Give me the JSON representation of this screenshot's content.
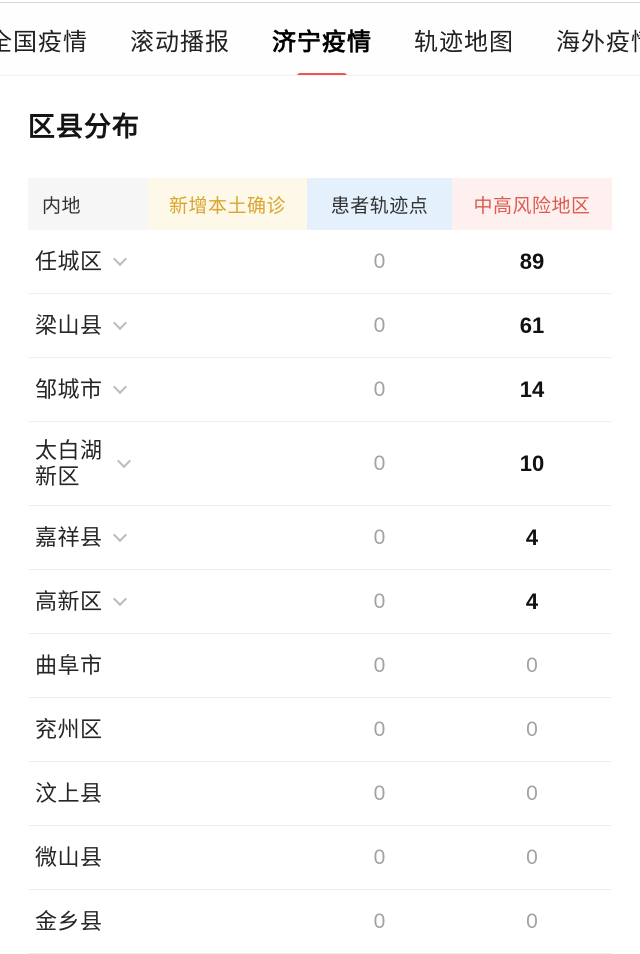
{
  "tabs": {
    "items": [
      {
        "label": "全国疫情",
        "active": false
      },
      {
        "label": "滚动播报",
        "active": false
      },
      {
        "label": "济宁疫情",
        "active": true
      },
      {
        "label": "轨迹地图",
        "active": false
      },
      {
        "label": "海外疫情",
        "active": false
      }
    ]
  },
  "section": {
    "title": "区县分布"
  },
  "table": {
    "columns": [
      {
        "label": "内地",
        "text_color": "#333333",
        "bg_color": "#f6f6f6"
      },
      {
        "label": "新增本土确诊",
        "text_color": "#d9a62e",
        "bg_color": "#fdf8e8"
      },
      {
        "label": "患者轨迹点",
        "text_color": "#333333",
        "bg_color": "#e4f0fb"
      },
      {
        "label": "中高风险地区",
        "text_color": "#dd5b4f",
        "bg_color": "#fdf0ef"
      }
    ],
    "rows": [
      {
        "name": "任城区",
        "expandable": true,
        "wrap": false,
        "new_local_confirmed": "",
        "track_points": "0",
        "mid_high_risk_areas": "89"
      },
      {
        "name": "梁山县",
        "expandable": true,
        "wrap": false,
        "new_local_confirmed": "",
        "track_points": "0",
        "mid_high_risk_areas": "61"
      },
      {
        "name": "邹城市",
        "expandable": true,
        "wrap": false,
        "new_local_confirmed": "",
        "track_points": "0",
        "mid_high_risk_areas": "14"
      },
      {
        "name": "太白湖新区",
        "expandable": true,
        "wrap": true,
        "new_local_confirmed": "",
        "track_points": "0",
        "mid_high_risk_areas": "10"
      },
      {
        "name": "嘉祥县",
        "expandable": true,
        "wrap": false,
        "new_local_confirmed": "",
        "track_points": "0",
        "mid_high_risk_areas": "4"
      },
      {
        "name": "高新区",
        "expandable": true,
        "wrap": false,
        "new_local_confirmed": "",
        "track_points": "0",
        "mid_high_risk_areas": "4"
      },
      {
        "name": "曲阜市",
        "expandable": false,
        "wrap": false,
        "new_local_confirmed": "",
        "track_points": "0",
        "mid_high_risk_areas": "0"
      },
      {
        "name": "兖州区",
        "expandable": false,
        "wrap": false,
        "new_local_confirmed": "",
        "track_points": "0",
        "mid_high_risk_areas": "0"
      },
      {
        "name": "汶上县",
        "expandable": false,
        "wrap": false,
        "new_local_confirmed": "",
        "track_points": "0",
        "mid_high_risk_areas": "0"
      },
      {
        "name": "微山县",
        "expandable": false,
        "wrap": false,
        "new_local_confirmed": "",
        "track_points": "0",
        "mid_high_risk_areas": "0"
      },
      {
        "name": "金乡县",
        "expandable": false,
        "wrap": false,
        "new_local_confirmed": "",
        "track_points": "0",
        "mid_high_risk_areas": "0"
      }
    ]
  },
  "colors": {
    "accent_red": "#f05350",
    "risk_header_text": "#dd5b4f",
    "new_confirmed_header_text": "#d9a62e",
    "zero_value": "#a3a3a3",
    "strong_value": "#111111"
  }
}
